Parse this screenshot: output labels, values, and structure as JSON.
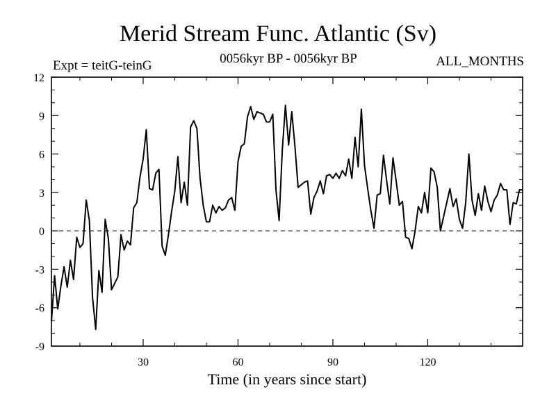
{
  "header": {
    "title": "Merid Stream Func. Atlantic (Sv)",
    "experiment": "Expt = teitG-teinG",
    "period": "0056kyr BP - 0056kyr BP",
    "months": "ALL_MONTHS"
  },
  "chart_data": {
    "type": "line",
    "title": "Merid Stream Func. Atlantic (Sv)",
    "xlabel": "Time (in years since start)",
    "ylabel": "",
    "xlim": [
      1,
      150
    ],
    "ylim": [
      -9,
      12
    ],
    "x_ticks": [
      30,
      60,
      90,
      120
    ],
    "y_ticks": [
      -9,
      -6,
      -3,
      0,
      3,
      6,
      9,
      12
    ],
    "reference_line": {
      "y": 0,
      "style": "dashed"
    },
    "series": [
      {
        "name": "Merid Stream Func. Atlantic",
        "color": "#000000",
        "x": [
          1,
          2,
          3,
          4,
          5,
          6,
          7,
          8,
          9,
          10,
          11,
          12,
          13,
          14,
          15,
          16,
          17,
          18,
          19,
          20,
          21,
          22,
          23,
          24,
          25,
          26,
          27,
          28,
          29,
          30,
          31,
          32,
          33,
          34,
          35,
          36,
          37,
          38,
          39,
          40,
          41,
          42,
          43,
          44,
          45,
          46,
          47,
          48,
          49,
          50,
          51,
          52,
          53,
          54,
          55,
          56,
          57,
          58,
          59,
          60,
          61,
          62,
          63,
          64,
          65,
          66,
          67,
          68,
          69,
          70,
          71,
          72,
          73,
          74,
          75,
          76,
          77,
          78,
          79,
          80,
          81,
          82,
          83,
          84,
          85,
          86,
          87,
          88,
          89,
          90,
          91,
          92,
          93,
          94,
          95,
          96,
          97,
          98,
          99,
          100,
          101,
          102,
          103,
          104,
          105,
          106,
          107,
          108,
          109,
          110,
          111,
          112,
          113,
          114,
          115,
          116,
          117,
          118,
          119,
          120,
          121,
          122,
          123,
          124,
          125,
          126,
          127,
          128,
          129,
          130,
          131,
          132,
          133,
          134,
          135,
          136,
          137,
          138,
          139,
          140,
          141,
          142,
          143,
          144,
          145,
          146,
          147,
          148,
          149,
          150
        ],
        "values": [
          -7.1,
          -3.5,
          -6.1,
          -4.3,
          -2.8,
          -4.4,
          -2.3,
          -3.8,
          -0.5,
          -1.3,
          -1.0,
          2.4,
          0.8,
          -5.2,
          -7.7,
          -3.1,
          -4.8,
          0.9,
          -0.6,
          -4.6,
          -4.1,
          -3.6,
          -0.3,
          -1.5,
          -0.8,
          -1.1,
          1.8,
          2.2,
          4.2,
          5.6,
          7.9,
          3.3,
          3.2,
          4.5,
          4.8,
          -1.2,
          -1.9,
          -0.3,
          1.5,
          3.1,
          5.8,
          2.2,
          3.8,
          2.0,
          8.1,
          8.6,
          8.0,
          4.1,
          2.0,
          0.7,
          0.7,
          2.0,
          1.4,
          1.9,
          1.6,
          1.8,
          2.4,
          2.6,
          1.6,
          5.4,
          6.6,
          6.8,
          8.9,
          9.7,
          8.7,
          9.3,
          9.2,
          9.1,
          8.5,
          8.5,
          9.1,
          3.2,
          0.8,
          6.3,
          9.8,
          6.7,
          9.3,
          6.6,
          3.4,
          3.6,
          3.8,
          3.9,
          1.3,
          2.6,
          3.1,
          3.9,
          2.9,
          4.3,
          4.4,
          4.1,
          4.5,
          4.1,
          4.7,
          4.3,
          5.6,
          4.1,
          7.3,
          5.0,
          9.5,
          5.1,
          3.3,
          1.6,
          0.2,
          2.8,
          2.9,
          5.9,
          3.9,
          2.1,
          5.7,
          3.9,
          2.0,
          2.3,
          -0.5,
          -0.6,
          -1.4,
          0.0,
          1.9,
          1.4,
          3.0,
          1.4,
          4.9,
          4.6,
          3.4,
          0.0,
          1.1,
          2.2,
          3.3,
          1.9,
          2.5,
          0.9,
          0.2,
          2.2,
          6.0,
          2.4,
          1.2,
          2.9,
          1.6,
          3.5,
          2.3,
          1.5,
          2.4,
          2.8,
          3.7,
          3.2,
          3.2,
          0.5,
          2.2,
          2.1,
          3.2,
          3.2
        ]
      }
    ]
  }
}
